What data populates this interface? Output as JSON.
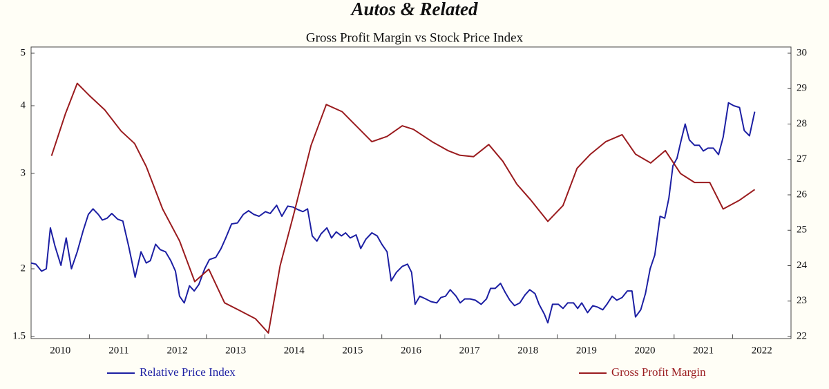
{
  "chart_data": {
    "type": "line",
    "title": "Autos & Related",
    "subtitle": "Gross Profit Margin vs Stock Price Index",
    "xlim": [
      2010,
      2023
    ],
    "xticks": [
      2010,
      2011,
      2012,
      2013,
      2014,
      2015,
      2016,
      2017,
      2018,
      2019,
      2020,
      2021,
      2022
    ],
    "ylim": [
      1.5,
      5
    ],
    "yticks": [
      1.5,
      2,
      3,
      4,
      5
    ],
    "ylog": true,
    "y2lim": [
      22,
      30
    ],
    "y2ticks": [
      22,
      23,
      24,
      25,
      26,
      27,
      28,
      29,
      30
    ],
    "legend": "bottom",
    "series": [
      {
        "name": "Relative Price Index",
        "color": "#1c1fa3",
        "axis": "y",
        "x": [
          2010.0,
          2010.08,
          2010.18,
          2010.26,
          2010.33,
          2010.41,
          2010.51,
          2010.6,
          2010.69,
          2010.79,
          2010.89,
          2010.98,
          2011.06,
          2011.15,
          2011.22,
          2011.3,
          2011.38,
          2011.48,
          2011.57,
          2011.67,
          2011.78,
          2011.88,
          2011.97,
          2012.04,
          2012.13,
          2012.21,
          2012.3,
          2012.39,
          2012.47,
          2012.54,
          2012.62,
          2012.71,
          2012.79,
          2012.87,
          2012.97,
          2013.05,
          2013.16,
          2013.25,
          2013.33,
          2013.43,
          2013.53,
          2013.63,
          2013.72,
          2013.81,
          2013.9,
          2014.01,
          2014.09,
          2014.2,
          2014.29,
          2014.39,
          2014.48,
          2014.57,
          2014.65,
          2014.73,
          2014.81,
          2014.89,
          2014.96,
          2015.06,
          2015.14,
          2015.22,
          2015.31,
          2015.38,
          2015.46,
          2015.56,
          2015.64,
          2015.73,
          2015.83,
          2015.92,
          2016.0,
          2016.09,
          2016.16,
          2016.25,
          2016.35,
          2016.44,
          2016.51,
          2016.57,
          2016.65,
          2016.75,
          2016.84,
          2016.94,
          2017.01,
          2017.09,
          2017.17,
          2017.27,
          2017.34,
          2017.42,
          2017.51,
          2017.6,
          2017.7,
          2017.79,
          2017.86,
          2017.94,
          2018.03,
          2018.11,
          2018.19,
          2018.27,
          2018.36,
          2018.45,
          2018.53,
          2018.62,
          2018.69,
          2018.78,
          2018.84,
          2018.92,
          2019.02,
          2019.1,
          2019.18,
          2019.28,
          2019.35,
          2019.42,
          2019.52,
          2019.61,
          2019.69,
          2019.78,
          2019.85,
          2019.94,
          2020.02,
          2020.11,
          2020.2,
          2020.28,
          2020.34,
          2020.43,
          2020.51,
          2020.59,
          2020.67,
          2020.76,
          2020.84,
          2020.91,
          2020.98,
          2021.05,
          2021.12,
          2021.19,
          2021.26,
          2021.35,
          2021.43,
          2021.5,
          2021.58,
          2021.67,
          2021.76,
          2021.84,
          2021.93,
          2022.02,
          2022.12,
          2022.2,
          2022.29,
          2022.38
        ],
        "values": [
          2.05,
          2.04,
          1.98,
          2.0,
          2.38,
          2.2,
          2.03,
          2.28,
          2.0,
          2.15,
          2.35,
          2.52,
          2.58,
          2.52,
          2.46,
          2.48,
          2.53,
          2.47,
          2.45,
          2.2,
          1.93,
          2.15,
          2.05,
          2.07,
          2.22,
          2.17,
          2.15,
          2.07,
          1.98,
          1.78,
          1.73,
          1.86,
          1.82,
          1.87,
          2.0,
          2.08,
          2.1,
          2.18,
          2.28,
          2.42,
          2.43,
          2.52,
          2.56,
          2.52,
          2.5,
          2.55,
          2.53,
          2.62,
          2.5,
          2.61,
          2.6,
          2.57,
          2.55,
          2.58,
          2.3,
          2.25,
          2.32,
          2.38,
          2.28,
          2.34,
          2.3,
          2.33,
          2.28,
          2.31,
          2.18,
          2.27,
          2.33,
          2.3,
          2.22,
          2.15,
          1.9,
          1.97,
          2.02,
          2.04,
          1.97,
          1.72,
          1.78,
          1.76,
          1.74,
          1.73,
          1.77,
          1.78,
          1.83,
          1.78,
          1.73,
          1.76,
          1.76,
          1.75,
          1.72,
          1.76,
          1.84,
          1.84,
          1.88,
          1.81,
          1.75,
          1.71,
          1.73,
          1.79,
          1.83,
          1.8,
          1.72,
          1.65,
          1.59,
          1.72,
          1.72,
          1.69,
          1.73,
          1.73,
          1.69,
          1.73,
          1.66,
          1.71,
          1.7,
          1.68,
          1.72,
          1.78,
          1.75,
          1.77,
          1.82,
          1.82,
          1.63,
          1.68,
          1.8,
          2.0,
          2.12,
          2.5,
          2.48,
          2.7,
          3.1,
          3.2,
          3.45,
          3.7,
          3.46,
          3.38,
          3.38,
          3.3,
          3.34,
          3.34,
          3.25,
          3.5,
          4.05,
          4.0,
          3.97,
          3.6,
          3.52,
          3.9
        ]
      },
      {
        "name": "Gross Profit Margin",
        "color": "#9a1b1e",
        "axis": "y2",
        "x": [
          2010.35,
          2010.59,
          2010.79,
          2011.0,
          2011.26,
          2011.54,
          2011.77,
          2011.97,
          2012.25,
          2012.54,
          2012.8,
          2013.04,
          2013.31,
          2013.55,
          2013.84,
          2014.06,
          2014.26,
          2014.5,
          2014.79,
          2015.05,
          2015.32,
          2015.56,
          2015.83,
          2016.09,
          2016.35,
          2016.54,
          2016.86,
          2017.13,
          2017.33,
          2017.57,
          2017.83,
          2018.07,
          2018.31,
          2018.55,
          2018.84,
          2019.1,
          2019.34,
          2019.57,
          2019.83,
          2020.11,
          2020.34,
          2020.6,
          2020.85,
          2021.11,
          2021.35,
          2021.61,
          2021.84,
          2022.12,
          2022.38
        ],
        "values": [
          27.1,
          28.3,
          29.15,
          28.8,
          28.4,
          27.8,
          27.45,
          26.8,
          25.6,
          24.7,
          23.55,
          23.9,
          22.95,
          22.75,
          22.5,
          22.1,
          24.0,
          25.5,
          27.4,
          28.55,
          28.35,
          27.95,
          27.5,
          27.65,
          27.95,
          27.85,
          27.5,
          27.25,
          27.12,
          27.08,
          27.42,
          26.95,
          26.3,
          25.85,
          25.25,
          25.7,
          26.75,
          27.15,
          27.5,
          27.7,
          27.15,
          26.9,
          27.25,
          26.6,
          26.35,
          26.35,
          25.6,
          25.85,
          26.15
        ]
      }
    ]
  }
}
